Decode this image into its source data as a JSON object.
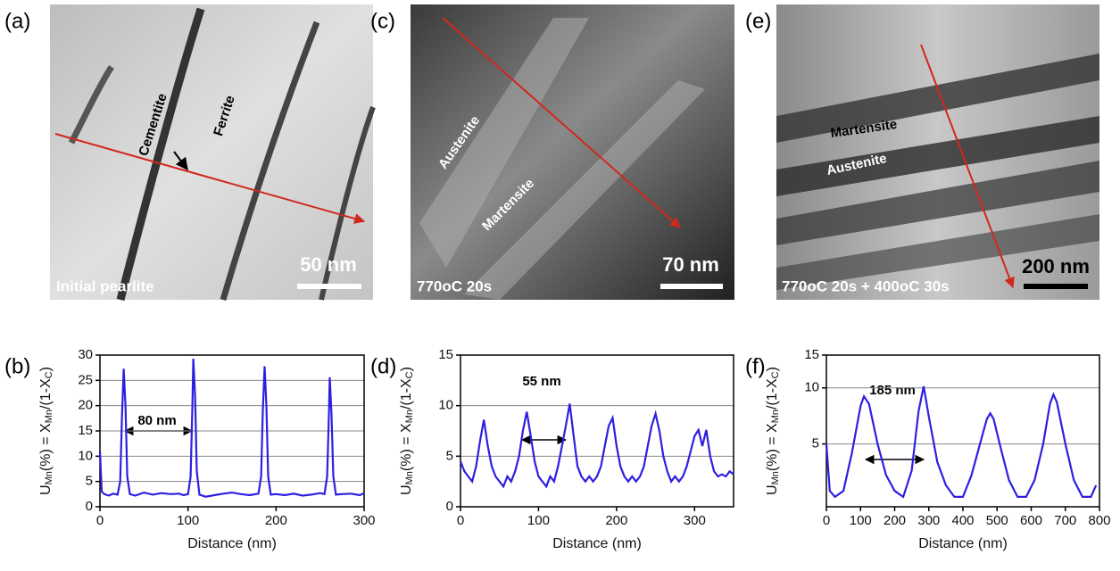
{
  "micrographs": [
    {
      "panel": "(a)",
      "caption": "Initial pearlite",
      "scale_bar": "50 nm",
      "labels": [
        "Cementite",
        "Ferrite"
      ]
    },
    {
      "panel": "(c)",
      "caption": "770oC 20s",
      "scale_bar": "70 nm",
      "labels": [
        "Austenite",
        "Martensite"
      ]
    },
    {
      "panel": "(e)",
      "caption": "770oC 20s + 400oC 30s",
      "scale_bar": "200 nm",
      "labels": [
        "Martensite",
        "Austenite"
      ]
    }
  ],
  "chart_data": [
    {
      "panel": "(b)",
      "type": "line",
      "x_label": "Distance (nm)",
      "y_label": [
        "U",
        "Mn",
        "(%) = X",
        "Mn",
        "/(1-X",
        "C",
        ")"
      ],
      "annotation": "80 nm",
      "color": "#2e1fe0",
      "grid": true,
      "log_y": false,
      "xlim": [
        0,
        300
      ],
      "xticks": [
        0,
        100,
        200,
        300
      ],
      "ylim": [
        0,
        30
      ],
      "yticks": [
        0,
        5,
        10,
        15,
        20,
        25,
        30
      ],
      "x": [
        0,
        2,
        5,
        10,
        15,
        20,
        23,
        25,
        27,
        29,
        31,
        34,
        40,
        50,
        60,
        70,
        80,
        90,
        95,
        100,
        103,
        105,
        106,
        108,
        110,
        113,
        120,
        130,
        140,
        150,
        160,
        170,
        180,
        183,
        185,
        187,
        189,
        191,
        194,
        200,
        210,
        220,
        230,
        240,
        250,
        255,
        258,
        260,
        261,
        263,
        265,
        268,
        275,
        285,
        295,
        300
      ],
      "values": [
        11,
        3,
        2.5,
        2.2,
        2.6,
        2.4,
        5,
        18,
        27.3,
        20,
        6,
        2.5,
        2.2,
        2.8,
        2.4,
        2.7,
        2.5,
        2.6,
        2.3,
        2.5,
        6,
        20,
        29.3,
        22,
        7,
        2.4,
        2,
        2.3,
        2.6,
        2.8,
        2.5,
        2.3,
        2.6,
        6,
        19,
        27.8,
        20,
        6,
        2.4,
        2.5,
        2.3,
        2.6,
        2.2,
        2.4,
        2.7,
        2.5,
        6,
        18,
        25.6,
        18,
        6,
        2.4,
        2.5,
        2.6,
        2.3,
        2.7
      ]
    },
    {
      "panel": "(d)",
      "type": "line",
      "x_label": "Distance (nm)",
      "y_label": [
        "U",
        "Mn",
        "(%) = X",
        "Mn",
        "/(1-X",
        "C",
        ")"
      ],
      "annotation": "55 nm",
      "color": "#2e1fe0",
      "grid": true,
      "log_y": false,
      "xlim": [
        0,
        350
      ],
      "xticks": [
        0,
        100,
        200,
        300
      ],
      "ylim": [
        0,
        15
      ],
      "yticks": [
        0,
        5,
        10,
        15
      ],
      "x": [
        0,
        5,
        10,
        15,
        20,
        25,
        30,
        35,
        40,
        45,
        50,
        55,
        60,
        65,
        70,
        75,
        80,
        85,
        90,
        95,
        100,
        105,
        110,
        115,
        120,
        125,
        130,
        135,
        140,
        145,
        150,
        155,
        160,
        165,
        170,
        175,
        180,
        185,
        190,
        195,
        200,
        205,
        210,
        215,
        220,
        225,
        230,
        235,
        240,
        245,
        250,
        255,
        260,
        265,
        270,
        275,
        280,
        285,
        290,
        295,
        300,
        305,
        310,
        315,
        320,
        325,
        330,
        335,
        340,
        345,
        350
      ],
      "values": [
        4.5,
        3.5,
        3,
        2.5,
        4,
        6.5,
        8.6,
        6,
        4,
        3,
        2.5,
        2,
        3,
        2.5,
        3.5,
        5,
        7.5,
        9.4,
        7,
        4.5,
        3,
        2.5,
        2,
        3,
        2.5,
        4,
        6,
        8,
        10.2,
        7,
        4,
        3,
        2.5,
        3,
        2.5,
        3,
        4,
        6,
        8,
        8.8,
        6,
        4,
        3,
        2.5,
        3,
        2.5,
        3,
        4,
        6,
        8,
        9.2,
        7.5,
        5,
        3.5,
        2.5,
        3,
        2.5,
        3,
        4,
        5.5,
        7,
        7.6,
        6,
        7.6,
        5,
        3.5,
        3,
        3.2,
        3,
        3.5,
        3.2
      ]
    },
    {
      "panel": "(f)",
      "type": "line",
      "x_label": "Distance (nm)",
      "y_label": [
        "U",
        "Mn",
        "(%) = X",
        "Mn",
        "/(1-X",
        "C",
        ")"
      ],
      "annotation": "185 nm",
      "color": "#2e1fe0",
      "grid": true,
      "log_y": true,
      "xlim": [
        0,
        800
      ],
      "xticks": [
        0,
        100,
        200,
        300,
        400,
        500,
        600,
        700,
        800
      ],
      "ylim": [
        2.3,
        15
      ],
      "yticks": [
        5,
        10,
        15
      ],
      "x": [
        0,
        10,
        25,
        50,
        75,
        100,
        110,
        125,
        150,
        175,
        200,
        225,
        250,
        270,
        285,
        300,
        325,
        350,
        375,
        400,
        425,
        450,
        470,
        480,
        490,
        510,
        535,
        560,
        585,
        610,
        635,
        655,
        665,
        675,
        700,
        725,
        750,
        775,
        790
      ],
      "values": [
        5,
        2.8,
        2.6,
        2.8,
        4.5,
        8,
        9,
        8.2,
        5,
        3.4,
        2.8,
        2.6,
        3.6,
        7.5,
        10.2,
        7,
        4,
        3,
        2.6,
        2.6,
        3.4,
        5,
        6.8,
        7.3,
        6.8,
        4.8,
        3.2,
        2.6,
        2.6,
        3.2,
        5,
        8.2,
        9.2,
        8.4,
        5,
        3.2,
        2.6,
        2.6,
        3
      ]
    }
  ]
}
